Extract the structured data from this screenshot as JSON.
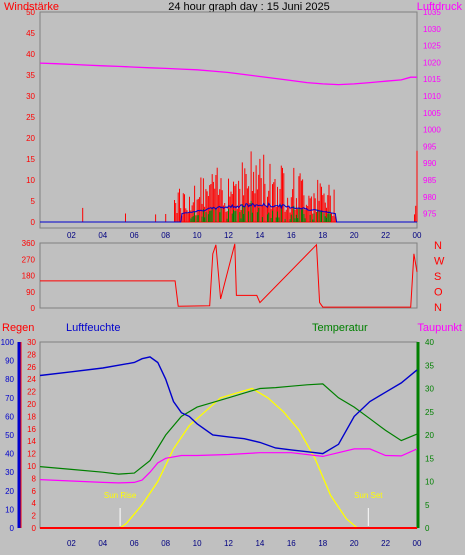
{
  "title": "24 hour graph day : 15 Juni 2025",
  "colors": {
    "wind": "#ff0000",
    "gust": "#0000cc",
    "windgreen": "#008000",
    "pressure": "#ff00ff",
    "humidity": "#0000cc",
    "temperature": "#008000",
    "dewpoint": "#ff00ff",
    "rain": "#ff0000",
    "solar": "#ffff00",
    "background": "#c0c0c0"
  },
  "chart_data": [
    {
      "type": "line",
      "name": "wind-pressure",
      "left_label": "Windstärke",
      "right_label": "Luftdruck",
      "x_ticks": [
        "02",
        "04",
        "06",
        "08",
        "10",
        "12",
        "14",
        "16",
        "18",
        "20",
        "22",
        "00"
      ],
      "y_left": {
        "ticks": [
          "0",
          "5",
          "10",
          "15",
          "20",
          "25",
          "30",
          "35",
          "40",
          "45",
          "50"
        ],
        "range": [
          0,
          50
        ]
      },
      "y_right": {
        "ticks": [
          "975",
          "980",
          "985",
          "990",
          "995",
          "1000",
          "1005",
          "1010",
          "1015",
          "1020",
          "1025",
          "1030",
          "1035"
        ],
        "range": [
          972.5,
          1035
        ]
      },
      "pressure": {
        "x": [
          0,
          1,
          2,
          3,
          4,
          5,
          6,
          7,
          8,
          9,
          10,
          11,
          12,
          13,
          14,
          15,
          16,
          17,
          18,
          19,
          20,
          21,
          22,
          23,
          23.6,
          24
        ],
        "y": [
          1019.8,
          1019.6,
          1019.4,
          1019.2,
          1019,
          1018.8,
          1018.6,
          1018.4,
          1018.2,
          1018,
          1017.8,
          1017.4,
          1017,
          1016.4,
          1015.8,
          1015.2,
          1014.6,
          1014,
          1013.6,
          1013.4,
          1013.6,
          1014,
          1014.4,
          1014.8,
          1015.6,
          1015.6
        ]
      },
      "wind_activity": [
        {
          "start": 8.5,
          "end": 18.8,
          "peak_hour": 13.8,
          "peak": 18
        },
        {
          "start": 23.8,
          "end": 24,
          "peak_hour": 24,
          "peak": 17
        }
      ]
    },
    {
      "type": "line",
      "name": "wind-direction",
      "y_left": {
        "ticks": [
          "0",
          "90",
          "180",
          "270",
          "360"
        ],
        "range": [
          0,
          360
        ]
      },
      "compass": [
        "N",
        "W",
        "S",
        "O",
        "N"
      ],
      "x": [
        0,
        8.6,
        8.8,
        10.8,
        11,
        11.2,
        11.5,
        12.4,
        12.5,
        13.8,
        14,
        17.6,
        17.8,
        18,
        23.6,
        23.8,
        24
      ],
      "y": [
        150,
        150,
        10,
        12,
        300,
        350,
        50,
        355,
        70,
        70,
        30,
        350,
        30,
        5,
        5,
        300,
        200
      ]
    },
    {
      "type": "line",
      "name": "humidity-temperature",
      "labels": {
        "rain": "Regen",
        "humidity": "Luftfeuchte",
        "temperature": "Temperatur",
        "dewpoint": "Taupunkt"
      },
      "x_ticks": [
        "02",
        "04",
        "06",
        "08",
        "10",
        "12",
        "14",
        "16",
        "18",
        "20",
        "22",
        "00"
      ],
      "y_humidity": {
        "ticks": [
          "0",
          "10",
          "20",
          "30",
          "40",
          "50",
          "60",
          "70",
          "80",
          "90",
          "100"
        ],
        "range": [
          0,
          100
        ]
      },
      "y_rain": {
        "ticks": [
          "0",
          "2",
          "4",
          "6",
          "8",
          "10",
          "12",
          "14",
          "16",
          "18",
          "20",
          "22",
          "24",
          "26",
          "28",
          "30"
        ],
        "range": [
          0,
          30
        ]
      },
      "y_temp": {
        "ticks": [
          "0",
          "5",
          "10",
          "15",
          "20",
          "25",
          "30",
          "35",
          "40"
        ],
        "range": [
          0,
          40
        ]
      },
      "humidity": {
        "x": [
          0,
          2,
          4,
          6,
          6.5,
          7,
          7.5,
          8,
          8.5,
          9,
          9.5,
          10,
          11,
          12,
          13,
          14,
          15,
          16,
          17,
          18,
          19,
          20,
          21,
          22,
          23,
          24
        ],
        "y": [
          82,
          84,
          86,
          89,
          91,
          92,
          89,
          80,
          68,
          62,
          60,
          56,
          50,
          49,
          48,
          46,
          43,
          42,
          41,
          40,
          45,
          60,
          68,
          73,
          78,
          85
        ]
      },
      "temperature": {
        "x": [
          0,
          2,
          4,
          5,
          6,
          7,
          8,
          9,
          10,
          11,
          12,
          13,
          14,
          15,
          16,
          17,
          18,
          19,
          20,
          21,
          22,
          23,
          24
        ],
        "y": [
          13.2,
          12.6,
          12,
          11.6,
          11.8,
          14.5,
          20,
          24,
          26,
          27,
          28,
          29,
          30,
          30.2,
          30.5,
          30.8,
          31,
          28,
          26,
          23.5,
          21,
          18.8,
          20.2
        ]
      },
      "dewpoint": {
        "x": [
          0,
          2,
          4,
          5,
          6,
          6.5,
          7,
          7.5,
          8,
          9,
          10,
          12,
          14,
          16,
          18,
          20,
          21,
          22,
          23,
          24
        ],
        "y": [
          10.4,
          10.1,
          9.8,
          9.7,
          9.8,
          10.3,
          12,
          14,
          15,
          15.6,
          15.6,
          15.8,
          16.2,
          16.2,
          15.4,
          17,
          17,
          15.6,
          15.5,
          17
        ]
      },
      "solar": {
        "x": [
          0,
          4.9,
          5.1,
          5.5,
          6.5,
          7.5,
          8.5,
          9.5,
          10.5,
          11.5,
          12.5,
          13.5,
          14.5,
          15.5,
          16.5,
          17.5,
          18.5,
          19.5,
          20.2,
          20.5,
          24
        ],
        "y": [
          0,
          0,
          0,
          1,
          5,
          10,
          17,
          22,
          25,
          28,
          29,
          30,
          28,
          25,
          21,
          15,
          7,
          2,
          0,
          0,
          0
        ]
      },
      "solar_scale": 40,
      "sunrise": {
        "hour": 5.1,
        "label": "Sun Rise"
      },
      "sunset": {
        "hour": 20.9,
        "label": "Sun Set"
      },
      "rain": {
        "x": [
          0,
          24
        ],
        "y": [
          0,
          0
        ]
      }
    }
  ]
}
